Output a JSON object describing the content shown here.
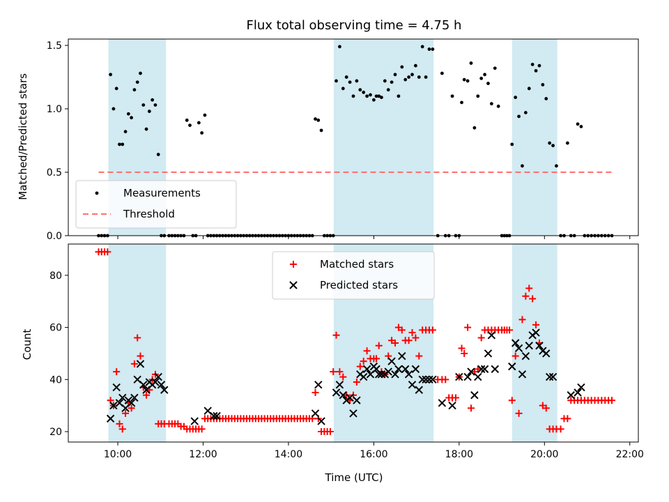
{
  "chart_data": [
    {
      "type": "scatter",
      "title": "Flux total observing time = 4.75 h",
      "xlabel": "",
      "ylabel": "Matched/Predicted stars",
      "xlim": [
        8.84,
        22.2
      ],
      "ylim": [
        0,
        1.55
      ],
      "xticks": [
        "10:00",
        "12:00",
        "14:00",
        "16:00",
        "18:00",
        "20:00",
        "22:00"
      ],
      "xtick_values": [
        10,
        12,
        14,
        16,
        18,
        20,
        22
      ],
      "yticks": [
        "0.0",
        "0.5",
        "1.0",
        "1.5"
      ],
      "ytick_values": [
        0,
        0.5,
        1.0,
        1.5
      ],
      "observing_windows": [
        [
          9.78,
          11.13
        ],
        [
          15.06,
          17.4
        ],
        [
          19.24,
          20.3
        ]
      ],
      "window_color": "#add8e6",
      "legend_position": "lower-left",
      "series": [
        {
          "name": "Measurements",
          "marker": "dot",
          "color": "#000000",
          "x": [
            9.55,
            9.62,
            9.69,
            9.76,
            9.83,
            9.9,
            9.97,
            10.04,
            10.11,
            10.18,
            10.25,
            10.32,
            10.39,
            10.46,
            10.53,
            10.6,
            10.67,
            10.74,
            10.81,
            10.88,
            10.95,
            11.02,
            11.09,
            11.2,
            11.27,
            11.34,
            11.41,
            11.48,
            11.55,
            11.62,
            11.69,
            11.76,
            11.83,
            11.9,
            11.97,
            12.04,
            12.11,
            12.18,
            12.25,
            12.32,
            12.39,
            12.46,
            12.53,
            12.6,
            12.67,
            12.74,
            12.81,
            12.88,
            12.95,
            13.02,
            13.09,
            13.16,
            13.23,
            13.3,
            13.37,
            13.44,
            13.51,
            13.58,
            13.65,
            13.72,
            13.79,
            13.86,
            13.93,
            14.0,
            14.07,
            14.14,
            14.21,
            14.28,
            14.35,
            14.42,
            14.49,
            14.56,
            14.63,
            14.7,
            14.77,
            14.84,
            14.91,
            14.98,
            15.05,
            15.12,
            15.2,
            15.28,
            15.36,
            15.44,
            15.52,
            15.6,
            15.68,
            15.76,
            15.84,
            15.92,
            16.0,
            16.06,
            16.12,
            16.18,
            16.26,
            16.34,
            16.42,
            16.5,
            16.58,
            16.66,
            16.74,
            16.82,
            16.9,
            16.98,
            17.06,
            17.14,
            17.22,
            17.3,
            17.38,
            17.5,
            17.6,
            17.68,
            17.76,
            17.84,
            17.92,
            18.0,
            18.06,
            18.12,
            18.2,
            18.28,
            18.36,
            18.44,
            18.52,
            18.6,
            18.68,
            18.76,
            18.84,
            18.92,
            19.0,
            19.06,
            19.12,
            19.18,
            19.24,
            19.32,
            19.4,
            19.48,
            19.56,
            19.64,
            19.72,
            19.8,
            19.88,
            19.96,
            20.04,
            20.12,
            20.2,
            20.28,
            20.38,
            20.46,
            20.54,
            20.62,
            20.7,
            20.78,
            20.86,
            20.94,
            21.02,
            21.1,
            21.18,
            21.26,
            21.34,
            21.42,
            21.5,
            21.58
          ],
          "y": [
            0,
            0,
            0,
            0,
            1.27,
            1.0,
            1.16,
            0.72,
            0.72,
            0.82,
            0.96,
            0.93,
            1.15,
            1.21,
            1.28,
            1.03,
            0.84,
            0.98,
            1.07,
            1.03,
            0.64,
            0,
            0,
            0,
            0,
            0,
            0,
            0,
            0,
            0.91,
            0.87,
            0,
            0,
            0.89,
            0.81,
            0.95,
            0,
            0,
            0,
            0,
            0,
            0,
            0,
            0,
            0,
            0,
            0,
            0,
            0,
            0,
            0,
            0,
            0,
            0,
            0,
            0,
            0,
            0,
            0,
            0,
            0,
            0,
            0,
            0,
            0,
            0,
            0,
            0,
            0,
            0,
            0,
            0,
            0.92,
            0.91,
            0.83,
            0,
            0,
            0,
            0,
            1.22,
            1.49,
            1.16,
            1.25,
            1.21,
            1.1,
            1.22,
            1.15,
            1.13,
            1.1,
            1.11,
            1.07,
            1.1,
            1.1,
            1.09,
            1.22,
            1.15,
            1.21,
            1.27,
            1.1,
            1.33,
            1.23,
            1.25,
            1.27,
            1.34,
            1.25,
            1.49,
            1.25,
            1.47,
            1.47,
            0,
            1.28,
            0,
            0,
            1.1,
            0,
            0,
            1.05,
            1.23,
            1.22,
            1.36,
            0.85,
            1.1,
            1.24,
            1.27,
            1.2,
            1.04,
            1.32,
            1.02,
            0,
            0,
            0,
            0,
            0.72,
            1.09,
            0.94,
            0.55,
            0.97,
            1.16,
            1.35,
            1.3,
            1.34,
            1.19,
            1.08,
            0.73,
            0.71,
            0.55,
            0,
            0,
            0.73,
            0,
            0,
            0.88,
            0.86,
            0,
            0,
            0,
            0,
            0,
            0,
            0,
            0,
            0
          ]
        },
        {
          "name": "Threshold",
          "type": "line",
          "style": "dashed",
          "color": "#ff6f6f",
          "x": [
            9.55,
            21.6
          ],
          "y": [
            0.5,
            0.5
          ]
        }
      ]
    },
    {
      "type": "scatter",
      "title": "",
      "xlabel": "Time (UTC)",
      "ylabel": "Count",
      "xlim": [
        8.84,
        22.2
      ],
      "ylim": [
        16,
        92
      ],
      "xticks": [
        "10:00",
        "12:00",
        "14:00",
        "16:00",
        "18:00",
        "20:00",
        "22:00"
      ],
      "xtick_values": [
        10,
        12,
        14,
        16,
        18,
        20,
        22
      ],
      "yticks": [
        "20",
        "40",
        "60",
        "80"
      ],
      "ytick_values": [
        20,
        40,
        60,
        80
      ],
      "observing_windows": [
        [
          9.78,
          11.13
        ],
        [
          15.06,
          17.4
        ],
        [
          19.24,
          20.3
        ]
      ],
      "window_color": "#add8e6",
      "legend_position": "upper-center",
      "series": [
        {
          "name": "Matched stars",
          "marker": "plus",
          "color": "#ff0000",
          "x": [
            9.55,
            9.62,
            9.69,
            9.76,
            9.83,
            9.9,
            9.97,
            10.04,
            10.11,
            10.18,
            10.25,
            10.32,
            10.39,
            10.46,
            10.53,
            10.6,
            10.67,
            10.74,
            10.81,
            10.88,
            10.95,
            11.02,
            11.09,
            11.2,
            11.27,
            11.34,
            11.41,
            11.48,
            11.55,
            11.62,
            11.69,
            11.76,
            11.83,
            11.9,
            11.97,
            12.04,
            12.11,
            12.18,
            12.25,
            12.32,
            12.39,
            12.46,
            12.53,
            12.6,
            12.67,
            12.74,
            12.81,
            12.88,
            12.95,
            13.02,
            13.09,
            13.16,
            13.23,
            13.3,
            13.37,
            13.44,
            13.51,
            13.58,
            13.65,
            13.72,
            13.79,
            13.86,
            13.93,
            14.0,
            14.07,
            14.14,
            14.21,
            14.28,
            14.35,
            14.42,
            14.49,
            14.56,
            14.63,
            14.7,
            14.77,
            14.84,
            14.91,
            14.98,
            15.05,
            15.12,
            15.2,
            15.28,
            15.36,
            15.44,
            15.52,
            15.6,
            15.68,
            15.76,
            15.84,
            15.92,
            16.0,
            16.06,
            16.12,
            16.18,
            16.26,
            16.34,
            16.42,
            16.5,
            16.58,
            16.66,
            16.74,
            16.82,
            16.9,
            16.98,
            17.06,
            17.14,
            17.22,
            17.3,
            17.38,
            17.5,
            17.6,
            17.68,
            17.76,
            17.84,
            17.92,
            18.0,
            18.06,
            18.12,
            18.2,
            18.28,
            18.36,
            18.44,
            18.52,
            18.6,
            18.68,
            18.76,
            18.84,
            18.92,
            19.0,
            19.06,
            19.12,
            19.18,
            19.24,
            19.32,
            19.4,
            19.48,
            19.56,
            19.64,
            19.72,
            19.8,
            19.88,
            19.96,
            20.04,
            20.12,
            20.2,
            20.28,
            20.38,
            20.46,
            20.54,
            20.62,
            20.7,
            20.78,
            20.86,
            20.94,
            21.02,
            21.1,
            21.18,
            21.26,
            21.34,
            21.42,
            21.5,
            21.58
          ],
          "y": [
            89,
            89,
            89,
            89,
            32,
            30,
            43,
            23,
            21,
            27,
            31,
            29,
            46,
            56,
            49,
            37,
            34,
            36,
            40,
            42,
            23,
            23,
            23,
            23,
            23,
            23,
            23,
            22,
            22,
            21,
            21,
            21,
            21,
            21,
            21,
            25,
            25,
            25,
            25,
            25,
            25,
            25,
            25,
            25,
            25,
            25,
            25,
            25,
            25,
            25,
            25,
            25,
            25,
            25,
            25,
            25,
            25,
            25,
            25,
            25,
            25,
            25,
            25,
            25,
            25,
            25,
            25,
            25,
            25,
            25,
            25,
            25,
            35,
            25,
            20,
            20,
            20,
            20,
            43,
            57,
            43,
            41,
            34,
            32,
            34,
            39,
            45,
            47,
            51,
            48,
            48,
            48,
            53,
            43,
            42,
            49,
            55,
            54,
            60,
            59,
            55,
            55,
            58,
            56,
            49,
            59,
            59,
            59,
            59,
            40,
            40,
            40,
            33,
            33,
            33,
            41,
            52,
            50,
            60,
            29,
            43,
            44,
            56,
            59,
            59,
            59,
            59,
            59,
            59,
            59,
            59,
            59,
            32,
            49,
            27,
            63,
            72,
            75,
            71,
            61,
            54,
            30,
            29,
            21,
            21,
            21,
            21,
            25,
            25,
            32,
            32,
            32,
            32,
            32,
            32,
            32,
            32,
            32,
            32,
            32,
            32,
            32
          ]
        },
        {
          "name": "Predicted stars",
          "marker": "x",
          "color": "#000000",
          "x": [
            9.83,
            9.9,
            9.97,
            10.04,
            10.11,
            10.18,
            10.25,
            10.32,
            10.39,
            10.46,
            10.53,
            10.6,
            10.67,
            10.74,
            10.81,
            10.88,
            10.95,
            11.02,
            11.09,
            11.8,
            12.11,
            12.25,
            12.32,
            14.63,
            14.7,
            14.77,
            15.12,
            15.2,
            15.28,
            15.36,
            15.44,
            15.52,
            15.6,
            15.68,
            15.76,
            15.84,
            15.92,
            16.0,
            16.06,
            16.12,
            16.18,
            16.26,
            16.34,
            16.42,
            16.5,
            16.58,
            16.66,
            16.74,
            16.82,
            16.9,
            16.98,
            17.06,
            17.14,
            17.22,
            17.3,
            17.38,
            17.6,
            17.84,
            18.0,
            18.2,
            18.28,
            18.36,
            18.44,
            18.52,
            18.6,
            18.68,
            18.76,
            18.84,
            19.24,
            19.32,
            19.4,
            19.48,
            19.56,
            19.64,
            19.72,
            19.8,
            19.88,
            19.96,
            20.04,
            20.12,
            20.2,
            20.62,
            20.78,
            20.86
          ],
          "y": [
            25,
            30,
            37,
            31,
            33,
            29,
            32,
            31,
            33,
            40,
            46,
            38,
            36,
            39,
            38,
            39,
            41,
            38,
            36,
            24,
            28,
            26,
            26,
            27,
            38,
            24,
            35,
            38,
            34,
            32,
            33,
            27,
            32,
            42,
            41,
            44,
            42,
            45,
            44,
            42,
            42,
            42,
            43,
            47,
            42,
            44,
            49,
            44,
            42,
            38,
            44,
            36,
            40,
            40,
            40,
            40,
            31,
            30,
            41,
            41,
            43,
            34,
            41,
            44,
            44,
            50,
            57,
            44,
            45,
            54,
            52,
            42,
            49,
            53,
            57,
            58,
            53,
            51,
            50,
            41,
            41,
            34,
            35,
            37
          ]
        }
      ]
    }
  ]
}
